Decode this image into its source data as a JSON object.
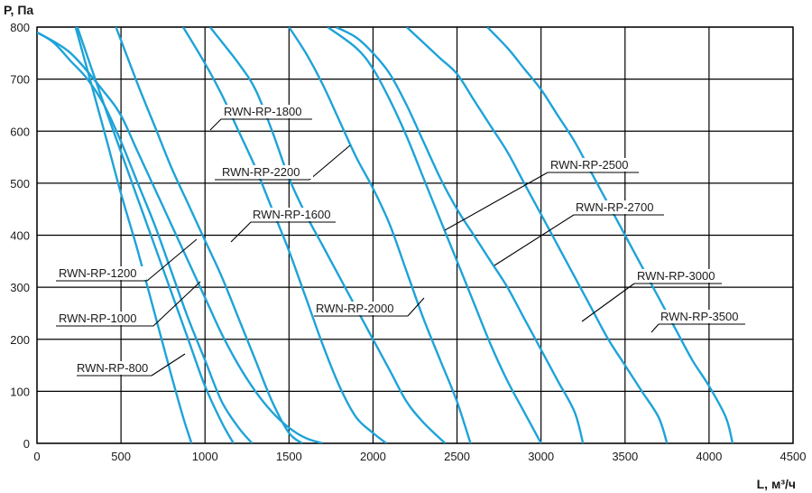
{
  "chart_data": {
    "type": "line",
    "xlabel": "L, м³/ч",
    "ylabel": "P, Па",
    "xlim": [
      0,
      4500
    ],
    "ylim": [
      0,
      800
    ],
    "x_ticks": [
      "0",
      "500",
      "1000",
      "1500",
      "2000",
      "2500",
      "3000",
      "3500",
      "4000",
      "4500"
    ],
    "y_ticks": [
      "0",
      "100",
      "200",
      "300",
      "400",
      "500",
      "600",
      "700",
      "800"
    ],
    "grid": true,
    "line_color": "#1ea3d8",
    "series": [
      {
        "name": "RWN-RP-800",
        "points": [
          [
            230,
            800
          ],
          [
            400,
            600
          ],
          [
            500,
            480
          ],
          [
            600,
            370
          ],
          [
            700,
            250
          ],
          [
            800,
            130
          ],
          [
            870,
            50
          ],
          [
            920,
            0
          ]
        ]
      },
      {
        "name": "RWN-RP-1000",
        "points": [
          [
            240,
            800
          ],
          [
            400,
            650
          ],
          [
            500,
            560
          ],
          [
            600,
            470
          ],
          [
            700,
            380
          ],
          [
            800,
            290
          ],
          [
            900,
            200
          ],
          [
            1000,
            110
          ],
          [
            1100,
            40
          ],
          [
            1170,
            0
          ]
        ]
      },
      {
        "name": "RWN-RP-1200",
        "points": [
          [
            0,
            790
          ],
          [
            100,
            770
          ],
          [
            200,
            735
          ],
          [
            300,
            700
          ],
          [
            400,
            650
          ],
          [
            500,
            580
          ],
          [
            600,
            500
          ],
          [
            700,
            420
          ],
          [
            800,
            330
          ],
          [
            900,
            240
          ],
          [
            1000,
            160
          ],
          [
            1100,
            80
          ],
          [
            1200,
            30
          ],
          [
            1280,
            0
          ]
        ]
      },
      {
        "name": "RWN-RP-1600",
        "points": [
          [
            470,
            800
          ],
          [
            600,
            690
          ],
          [
            700,
            610
          ],
          [
            800,
            530
          ],
          [
            900,
            460
          ],
          [
            1000,
            390
          ],
          [
            1100,
            320
          ],
          [
            1200,
            240
          ],
          [
            1300,
            160
          ],
          [
            1400,
            80
          ],
          [
            1500,
            20
          ],
          [
            1580,
            0
          ]
        ]
      },
      {
        "name": "RWN-RP-1800",
        "points": [
          [
            0,
            790
          ],
          [
            200,
            750
          ],
          [
            400,
            675
          ],
          [
            500,
            630
          ],
          [
            600,
            560
          ],
          [
            700,
            490
          ],
          [
            800,
            420
          ],
          [
            900,
            350
          ],
          [
            1000,
            280
          ],
          [
            1100,
            210
          ],
          [
            1200,
            150
          ],
          [
            1300,
            100
          ],
          [
            1400,
            60
          ],
          [
            1500,
            30
          ],
          [
            1600,
            10
          ],
          [
            1700,
            0
          ]
        ]
      },
      {
        "name": "RWN-RP-2200",
        "points": [
          [
            870,
            800
          ],
          [
            1000,
            730
          ],
          [
            1100,
            670
          ],
          [
            1200,
            600
          ],
          [
            1300,
            530
          ],
          [
            1400,
            450
          ],
          [
            1500,
            370
          ],
          [
            1600,
            280
          ],
          [
            1700,
            190
          ],
          [
            1800,
            110
          ],
          [
            1900,
            50
          ],
          [
            2000,
            20
          ],
          [
            2080,
            0
          ]
        ]
      },
      {
        "name": "RWN-RP-2000",
        "points": [
          [
            1030,
            800
          ],
          [
            1200,
            730
          ],
          [
            1300,
            680
          ],
          [
            1400,
            600
          ],
          [
            1500,
            510
          ],
          [
            1600,
            440
          ],
          [
            1700,
            380
          ],
          [
            1800,
            320
          ],
          [
            1900,
            260
          ],
          [
            2000,
            200
          ],
          [
            2100,
            140
          ],
          [
            2200,
            80
          ],
          [
            2300,
            40
          ],
          [
            2430,
            0
          ]
        ]
      },
      {
        "name": "RWN-RP-2500",
        "points": [
          [
            1500,
            800
          ],
          [
            1600,
            750
          ],
          [
            1700,
            690
          ],
          [
            1800,
            620
          ],
          [
            1900,
            550
          ],
          [
            2000,
            490
          ],
          [
            2100,
            420
          ],
          [
            2200,
            330
          ],
          [
            2300,
            240
          ],
          [
            2400,
            160
          ],
          [
            2500,
            80
          ],
          [
            2580,
            0
          ]
        ]
      },
      {
        "name": "RWN-RP-2700",
        "points": [
          [
            1730,
            800
          ],
          [
            1900,
            760
          ],
          [
            2000,
            720
          ],
          [
            2100,
            660
          ],
          [
            2200,
            590
          ],
          [
            2300,
            510
          ],
          [
            2400,
            430
          ],
          [
            2500,
            350
          ],
          [
            2600,
            270
          ],
          [
            2700,
            190
          ],
          [
            2800,
            120
          ],
          [
            2900,
            60
          ],
          [
            3000,
            0
          ]
        ]
      },
      {
        "name": "RWN-RP-3000",
        "points": [
          [
            1780,
            800
          ],
          [
            1900,
            780
          ],
          [
            2000,
            750
          ],
          [
            2100,
            710
          ],
          [
            2200,
            650
          ],
          [
            2300,
            580
          ],
          [
            2400,
            510
          ],
          [
            2500,
            450
          ],
          [
            2600,
            400
          ],
          [
            2700,
            350
          ],
          [
            2800,
            300
          ],
          [
            2900,
            240
          ],
          [
            3000,
            180
          ],
          [
            3100,
            120
          ],
          [
            3200,
            60
          ],
          [
            3250,
            0
          ]
        ]
      },
      {
        "name": "RWN-RP-3500",
        "points": [
          [
            2200,
            800
          ],
          [
            2300,
            770
          ],
          [
            2400,
            740
          ],
          [
            2500,
            710
          ],
          [
            2600,
            660
          ],
          [
            2700,
            610
          ],
          [
            2800,
            560
          ],
          [
            2900,
            500
          ],
          [
            3000,
            440
          ],
          [
            3100,
            380
          ],
          [
            3200,
            320
          ],
          [
            3300,
            260
          ],
          [
            3400,
            200
          ],
          [
            3500,
            150
          ],
          [
            3600,
            100
          ],
          [
            3700,
            50
          ],
          [
            3750,
            0
          ]
        ]
      },
      {
        "name": "RWN-RP-3500",
        "points": [
          [
            2680,
            800
          ],
          [
            2800,
            760
          ],
          [
            2900,
            720
          ],
          [
            3000,
            680
          ],
          [
            3100,
            630
          ],
          [
            3200,
            580
          ],
          [
            3300,
            520
          ],
          [
            3400,
            460
          ],
          [
            3500,
            400
          ],
          [
            3600,
            340
          ],
          [
            3700,
            280
          ],
          [
            3800,
            220
          ],
          [
            3900,
            160
          ],
          [
            4000,
            110
          ],
          [
            4100,
            50
          ],
          [
            4140,
            0
          ]
        ]
      }
    ],
    "labels": [
      {
        "text": "RWN-RP-800",
        "tx": 85,
        "ty": 412,
        "lx1": 85,
        "ly1": 416,
        "lx2": 168,
        "ly2": 416,
        "ax": 168,
        "ay": 416,
        "bx": 205,
        "by": 392
      },
      {
        "text": "RWN-RP-1000",
        "tx": 65,
        "ty": 357,
        "lx1": 62,
        "ly1": 361,
        "lx2": 170,
        "ly2": 361,
        "ax": 170,
        "ay": 361,
        "bx": 222,
        "by": 312
      },
      {
        "text": "RWN-RP-1200",
        "tx": 65,
        "ty": 307,
        "lx1": 62,
        "ly1": 311,
        "lx2": 163,
        "ly2": 311,
        "ax": 163,
        "ay": 311,
        "bx": 218,
        "by": 265
      },
      {
        "text": "RWN-RP-1600",
        "tx": 280,
        "ty": 242,
        "lx1": 278,
        "ly1": 246,
        "lx2": 372,
        "ly2": 246,
        "ax": 278,
        "ay": 246,
        "bx": 256,
        "by": 268
      },
      {
        "text": "RWN-RP-1800",
        "tx": 248,
        "ty": 128,
        "lx1": 245,
        "ly1": 132,
        "lx2": 346,
        "ly2": 132,
        "ax": 245,
        "ay": 132,
        "bx": 233,
        "by": 144
      },
      {
        "text": "RWN-RP-2200",
        "tx": 246,
        "ty": 195,
        "lx1": 238,
        "ly1": 199,
        "lx2": 343,
        "ly2": 199,
        "ax": 343,
        "ay": 199,
        "bx": 388,
        "by": 161
      },
      {
        "text": "RWN-RP-2000",
        "tx": 350,
        "ty": 346,
        "lx1": 348,
        "ly1": 350,
        "lx2": 452,
        "ly2": 350,
        "ax": 452,
        "ay": 350,
        "bx": 470,
        "by": 330
      },
      {
        "text": "RWN-RP-2500",
        "tx": 610,
        "ty": 187,
        "lx1": 607,
        "ly1": 191,
        "lx2": 708,
        "ly2": 191,
        "ax": 607,
        "ay": 191,
        "bx": 493,
        "by": 255
      },
      {
        "text": "RWN-RP-2700",
        "tx": 638,
        "ty": 234,
        "lx1": 636,
        "ly1": 238,
        "lx2": 736,
        "ly2": 238,
        "ax": 636,
        "ay": 238,
        "bx": 548,
        "by": 294
      },
      {
        "text": "RWN-RP-3000",
        "tx": 706,
        "ty": 310,
        "lx1": 703,
        "ly1": 314,
        "lx2": 800,
        "ly2": 314,
        "ax": 703,
        "ay": 314,
        "bx": 645,
        "by": 356
      },
      {
        "text": "RWN-RP-3500",
        "tx": 732,
        "ty": 355,
        "lx1": 730,
        "ly1": 359,
        "lx2": 826,
        "ly2": 359,
        "ax": 730,
        "ay": 359,
        "bx": 722,
        "by": 368
      }
    ]
  }
}
